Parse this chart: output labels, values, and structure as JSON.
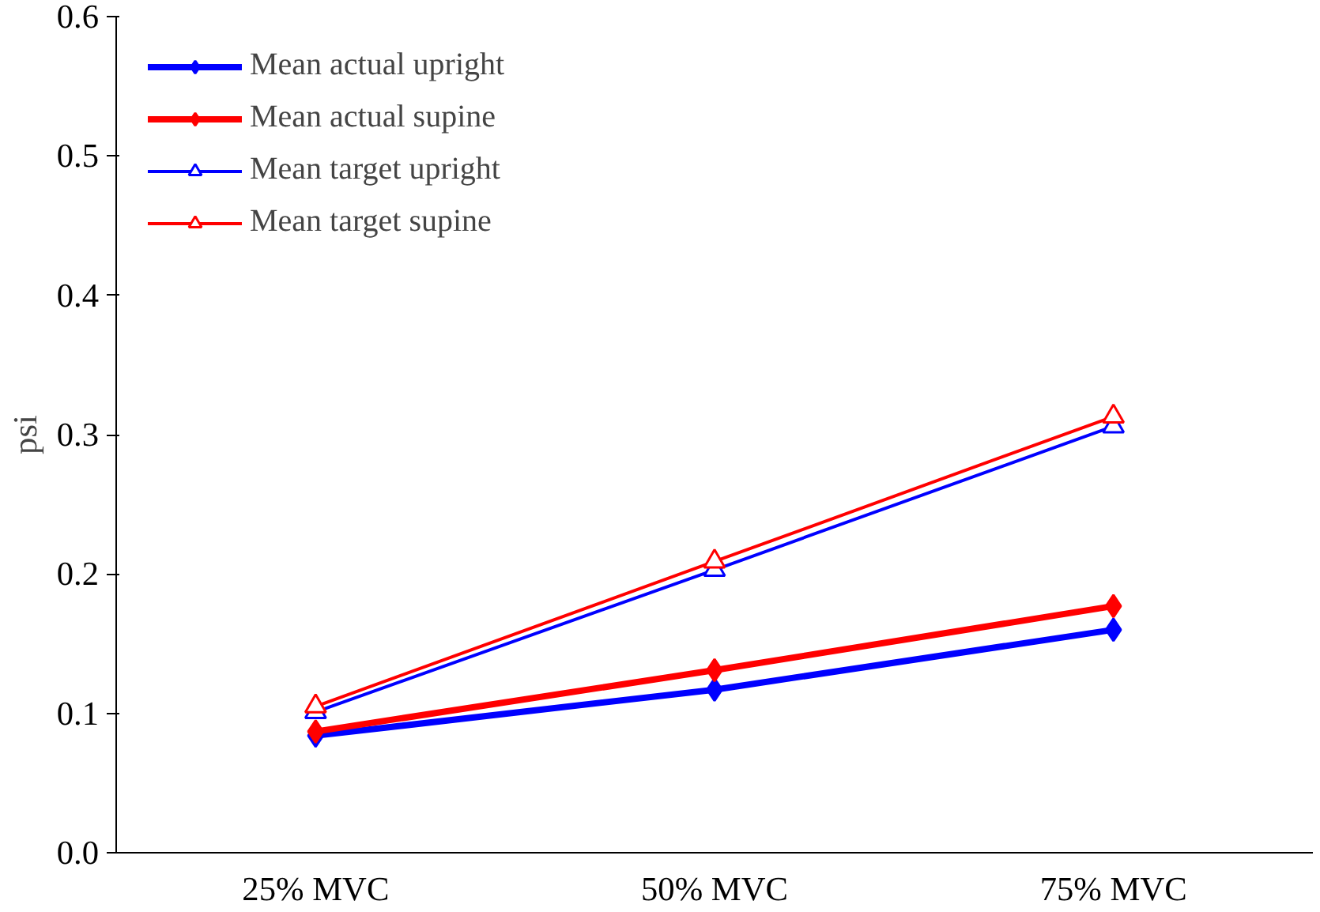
{
  "chart_data": {
    "type": "line",
    "ylabel": "psi",
    "categories": [
      "25% MVC",
      "50% MVC",
      "75% MVC"
    ],
    "ylim": [
      0,
      0.6
    ],
    "yticks": [
      {
        "value": 0,
        "label": "0.0"
      },
      0.1,
      0.2,
      0.3,
      0.4,
      0.5,
      0.6
    ],
    "grid": false,
    "legend": "top left",
    "series": [
      {
        "name": "Mean actual upright",
        "color": "#0000ff",
        "marker": "diamond",
        "values": [
          0.084,
          0.117,
          0.16
        ]
      },
      {
        "name": "Mean actual supine",
        "color": "#ff0000",
        "marker": "diamond",
        "values": [
          0.087,
          0.131,
          0.177
        ]
      },
      {
        "name": "Mean target upright",
        "color": "#0000ff",
        "marker": "triangle",
        "values": [
          0.101,
          0.203,
          0.306
        ]
      },
      {
        "name": "Mean target supine",
        "color": "#ff0000",
        "marker": "triangle",
        "values": [
          0.105,
          0.209,
          0.313
        ]
      }
    ]
  }
}
